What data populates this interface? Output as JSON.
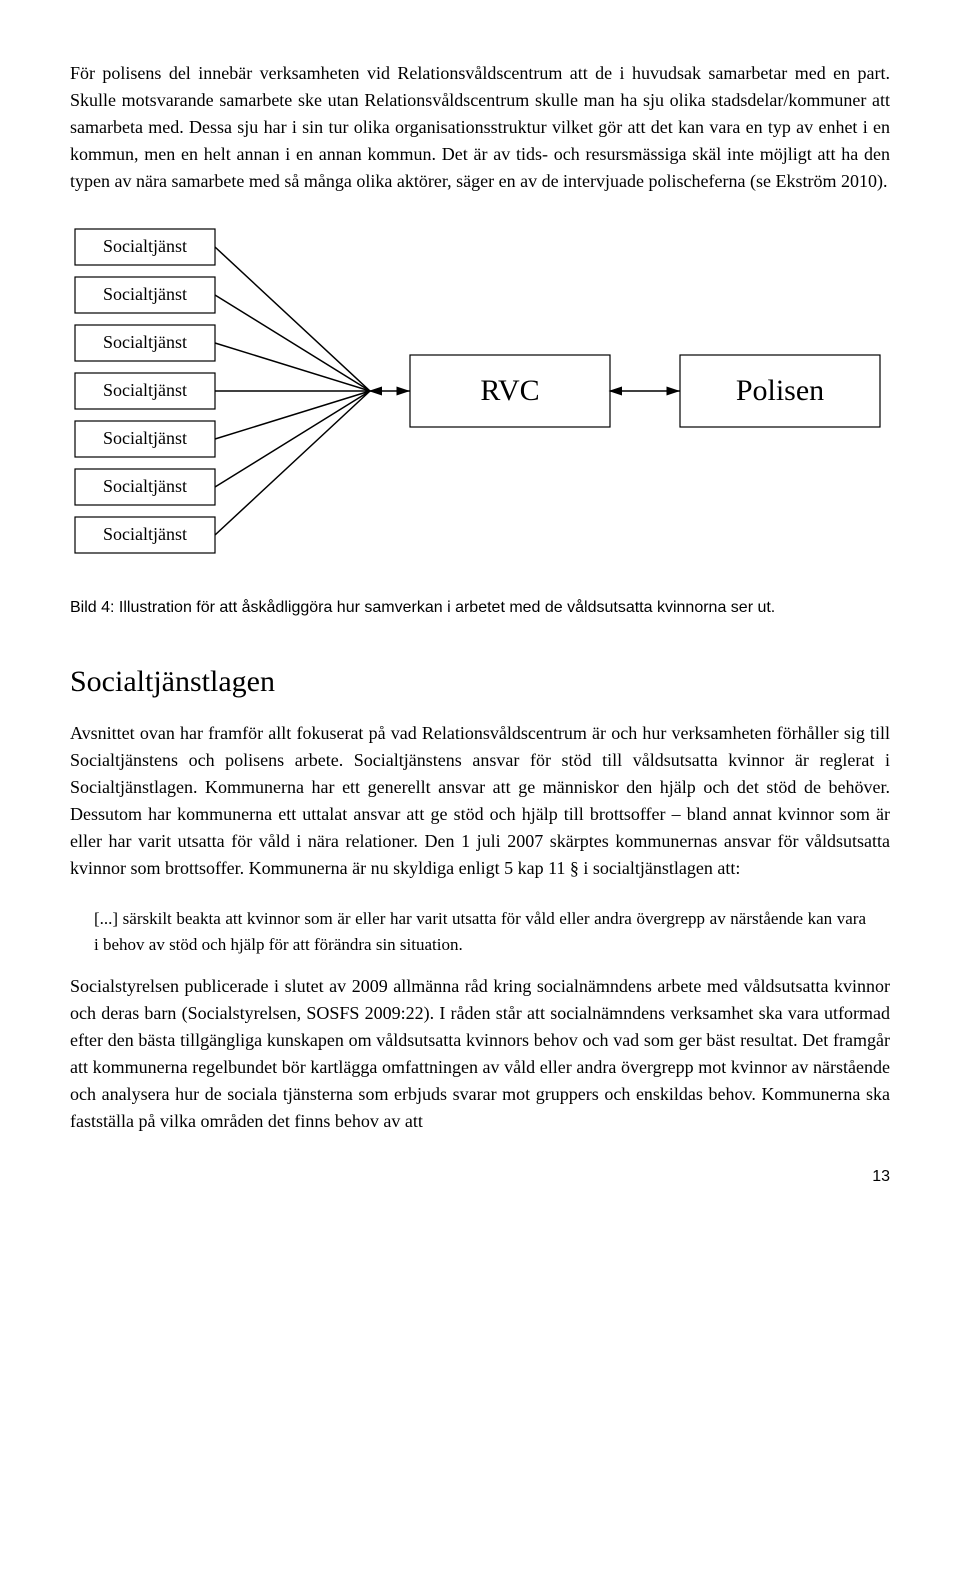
{
  "paragraph1": "För polisens del innebär verksamheten vid Relationsvåldscentrum att de i huvudsak samarbetar med en part. Skulle motsvarande samarbete ske utan Relationsvåldscentrum skulle man ha sju olika stadsdelar/kommuner att samarbeta med. Dessa sju har i sin tur olika organisationsstruktur vilket gör att det kan vara en typ av enhet i en kommun, men en helt annan i en annan kommun. Det är av tids- och resursmässiga skäl inte möjligt att ha den typen av nära samarbete med så många olika aktörer, säger en av de intervjuade polischeferna (se Ekström 2010).",
  "diagram": {
    "left_boxes": [
      "Socialtjänst",
      "Socialtjänst",
      "Socialtjänst",
      "Socialtjänst",
      "Socialtjänst",
      "Socialtjänst",
      "Socialtjänst"
    ],
    "center_box": "RVC",
    "right_box": "Polisen",
    "box_stroke": "#000000",
    "box_fill": "#ffffff",
    "left_font_size": 18,
    "center_font_size": 30,
    "right_font_size": 30,
    "arrow_stroke": "#000000",
    "arrow_width": 1.5
  },
  "caption": "Bild 4: Illustration för att åskådliggöra hur samverkan i arbetet med de våldsutsatta kvinnorna ser ut.",
  "section_title": "Socialtjänstlagen",
  "paragraph2": "Avsnittet ovan har framför allt fokuserat på vad Relationsvåldscentrum är och hur verksamheten förhåller sig till Socialtjänstens och polisens arbete. Socialtjänstens ansvar för stöd till våldsutsatta kvinnor är reglerat i Socialtjänstlagen. Kommunerna har ett generellt ansvar att ge människor den hjälp och det stöd de behöver. Dessutom har kommunerna ett uttalat ansvar att ge stöd och hjälp till brottsoffer – bland annat kvinnor som är eller har varit utsatta för våld i nära relationer. Den 1 juli 2007 skärptes kommunernas ansvar för våldsutsatta kvinnor som brottsoffer. Kommunerna är nu skyldiga enligt 5 kap 11 § i socialtjänstlagen att:",
  "quote": "[...] särskilt beakta att kvinnor som är eller har varit utsatta för våld eller andra övergrepp av närstående kan vara i behov av stöd och hjälp för att förändra sin situation.",
  "paragraph3": "Socialstyrelsen publicerade i slutet av 2009 allmänna råd kring socialnämndens arbete med våldsutsatta kvinnor och deras barn (Socialstyrelsen, SOSFS 2009:22). I råden står att socialnämndens verksamhet ska vara utformad efter den bästa tillgängliga kunskapen om våldsutsatta kvinnors behov och vad som ger bäst resultat. Det framgår att kommunerna regelbundet bör kartlägga omfattningen av våld eller andra övergrepp mot kvinnor av närstående och analysera hur de sociala tjänsterna som erbjuds svarar mot gruppers och enskildas behov. Kommunerna ska fastställa på vilka områden det finns behov av att",
  "page_number": "13"
}
